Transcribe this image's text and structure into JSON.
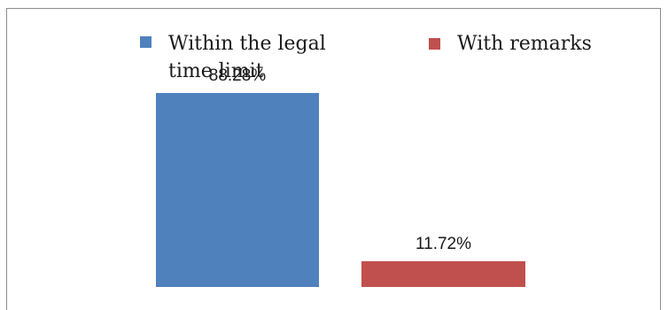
{
  "chart_data": {
    "type": "bar",
    "categories": [
      "Within the legal time limit",
      "With remarks"
    ],
    "values": [
      88.28,
      11.72
    ],
    "data_labels": [
      "88.28%",
      "11.72%"
    ],
    "colors": [
      "#4f81bd",
      "#c0504d"
    ],
    "ylim": [
      0,
      100
    ],
    "legend": {
      "position": "top",
      "entries": [
        {
          "line1": "Within the legal",
          "line2": "time limit",
          "color": "#4f81bd"
        },
        {
          "line1": "With remarks",
          "line2": "",
          "color": "#c0504d"
        }
      ]
    },
    "grid": false
  }
}
